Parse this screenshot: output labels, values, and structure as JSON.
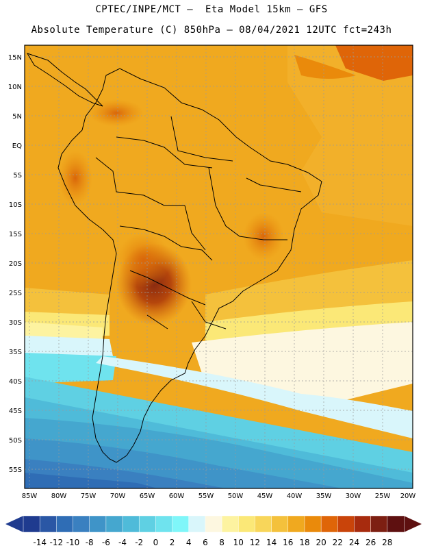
{
  "header": {
    "line1": "CPTEC/INPE/MCT –  Eta Model 15km – GFS",
    "line2": "Absolute Temperature (C) 850hPa – 08/04/2021 12UTC fct=243h"
  },
  "map": {
    "lat_labels": [
      "15N",
      "10N",
      "5N",
      "EQ",
      "5S",
      "10S",
      "15S",
      "20S",
      "25S",
      "30S",
      "35S",
      "40S",
      "45S",
      "50S",
      "55S"
    ],
    "lon_labels": [
      "85W",
      "80W",
      "75W",
      "70W",
      "65W",
      "60W",
      "55W",
      "50W",
      "45W",
      "40W",
      "35W",
      "30W",
      "25W",
      "20W"
    ]
  },
  "colorbar": {
    "ticks": [
      "-14",
      "-12",
      "-10",
      "-8",
      "-6",
      "-4",
      "-2",
      "0",
      "2",
      "4",
      "6",
      "8",
      "10",
      "12",
      "14",
      "16",
      "18",
      "20",
      "22",
      "24",
      "26",
      "28"
    ],
    "colors": [
      "#1f3b8f",
      "#2a57a5",
      "#2f6db5",
      "#3a80c0",
      "#3f94c8",
      "#45a7cf",
      "#4fbbd9",
      "#5fd0e3",
      "#6fe3ee",
      "#7ff6f9",
      "#d9f6fb",
      "#fdf7e0",
      "#fdf3a0",
      "#fbe877",
      "#f8d65a",
      "#f4c13c",
      "#f0a91f",
      "#ea8a0b",
      "#df6508",
      "#c9440a",
      "#a72b0e",
      "#7d1f12",
      "#5e1010"
    ]
  }
}
